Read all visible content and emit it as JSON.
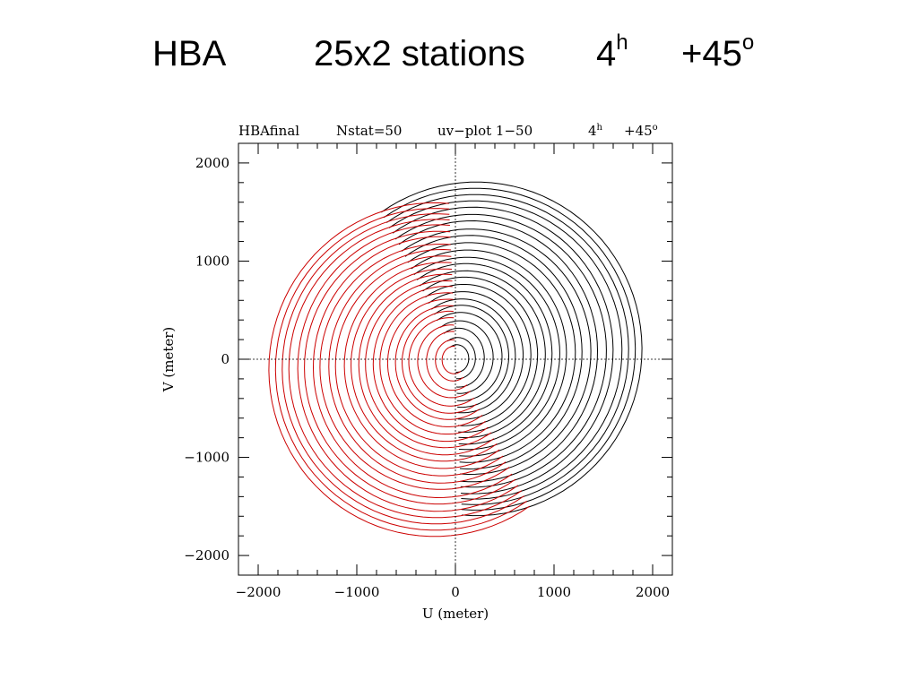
{
  "slide_title": {
    "array": "HBA",
    "stations": "25x2 stations",
    "hours_value": "4",
    "hours_sup": "h",
    "dec_value": "+45",
    "dec_sup": "o"
  },
  "chart_data": {
    "type": "scatter",
    "plot_header": {
      "name": "HBAfinal",
      "nstat": "Nstat=50",
      "plot_desc": "uv−plot  1−50",
      "hours_value": "4",
      "hours_sup": "h",
      "dec_value": "+45",
      "dec_sup": "o"
    },
    "xlabel": "U (meter)",
    "ylabel": "V (meter)",
    "xlim": [
      -2200,
      2200
    ],
    "ylim": [
      -2200,
      2200
    ],
    "xticks": [
      -2000,
      -1000,
      0,
      1000,
      2000
    ],
    "yticks": [
      -2000,
      -1000,
      0,
      1000,
      2000
    ],
    "xtick_labels": [
      "−2000",
      "−1000",
      "0",
      "1000",
      "2000"
    ],
    "ytick_labels": [
      "−2000",
      "−1000",
      "0",
      "1000",
      "2000"
    ],
    "zero_lines": true,
    "series": [
      {
        "color": "#000000",
        "arc_span_deg": [
          -95,
          125
        ],
        "center_direction": [
          0.7,
          0.35
        ],
        "tracks_meter": [
          [
            120,
            140
          ],
          [
            180,
            210
          ],
          [
            260,
            300
          ],
          [
            340,
            370
          ],
          [
            420,
            450
          ],
          [
            480,
            520
          ],
          [
            540,
            580
          ],
          [
            610,
            650
          ],
          [
            680,
            720
          ],
          [
            740,
            790
          ],
          [
            810,
            850
          ],
          [
            870,
            920
          ],
          [
            940,
            980
          ],
          [
            1000,
            1050
          ],
          [
            1080,
            1120
          ],
          [
            1140,
            1190
          ],
          [
            1220,
            1250
          ],
          [
            1280,
            1330
          ],
          [
            1360,
            1390
          ],
          [
            1420,
            1460
          ],
          [
            1500,
            1520
          ],
          [
            1560,
            1580
          ],
          [
            1620,
            1640
          ],
          [
            1680,
            1700
          ]
        ]
      },
      {
        "color": "#cc0000",
        "arc_span_deg": [
          85,
          305
        ],
        "center_direction": [
          -0.7,
          -0.35
        ],
        "tracks_meter": [
          [
            120,
            140
          ],
          [
            180,
            210
          ],
          [
            260,
            300
          ],
          [
            340,
            370
          ],
          [
            420,
            450
          ],
          [
            480,
            520
          ],
          [
            540,
            580
          ],
          [
            610,
            650
          ],
          [
            680,
            720
          ],
          [
            740,
            790
          ],
          [
            810,
            850
          ],
          [
            870,
            920
          ],
          [
            940,
            980
          ],
          [
            1000,
            1050
          ],
          [
            1080,
            1120
          ],
          [
            1140,
            1190
          ],
          [
            1220,
            1250
          ],
          [
            1280,
            1330
          ],
          [
            1360,
            1390
          ],
          [
            1420,
            1460
          ],
          [
            1500,
            1520
          ],
          [
            1560,
            1580
          ],
          [
            1620,
            1640
          ],
          [
            1680,
            1700
          ]
        ]
      }
    ]
  }
}
